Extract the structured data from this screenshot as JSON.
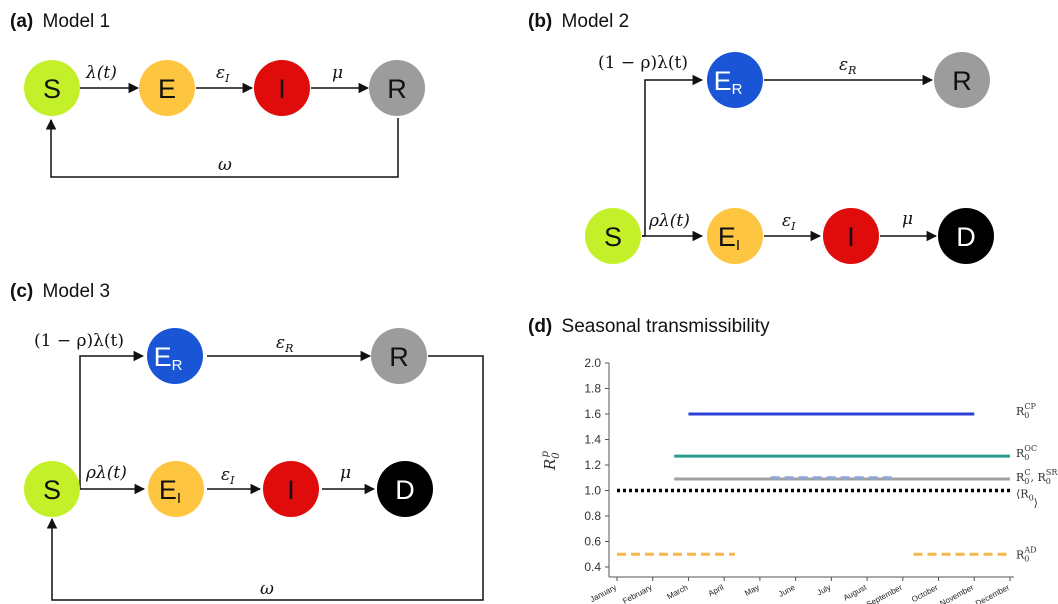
{
  "panels": {
    "a": {
      "tag": "(a)",
      "title": "Model 1"
    },
    "b": {
      "tag": "(b)",
      "title": "Model 2"
    },
    "c": {
      "tag": "(c)",
      "title": "Model 3"
    },
    "d": {
      "tag": "(d)",
      "title": "Seasonal transmissibility"
    }
  },
  "nodes": {
    "S": "S",
    "E": "E",
    "I": "I",
    "R": "R",
    "D": "D",
    "E_R_main": "E",
    "E_R_sub": "R",
    "E_I_main": "E",
    "E_I_sub": "I"
  },
  "colors": {
    "S": "#c4f02a",
    "E": "#fdc540",
    "I": "#e00b0b",
    "R": "#9c9c9c",
    "E_R": "#1a55d6",
    "D": "#000000"
  },
  "rates": {
    "lambda": "λ(t)",
    "epsilon_I": "ε",
    "epsilon_I_sub": "I",
    "epsilon_R": "ε",
    "epsilon_R_sub": "R",
    "mu": "μ",
    "omega": "ω",
    "one_minus_rho_lambda": "(1 − ρ)λ(t)",
    "rho_lambda": "ρλ(t)"
  },
  "chart_data": {
    "type": "line",
    "title": "Seasonal transmissibility",
    "ylabel": "R0p",
    "ylim": [
      0.4,
      2.0
    ],
    "yticks": [
      "0.4",
      "0.6",
      "0.8",
      "1.0",
      "1.2",
      "1.4",
      "1.6",
      "1.8",
      "2.0"
    ],
    "categories": [
      "January",
      "February",
      "March",
      "April",
      "May",
      "June",
      "July",
      "August",
      "September",
      "October",
      "November",
      "December"
    ],
    "series": [
      {
        "name": "R0^CP",
        "label_main": "R",
        "label_sub": "0",
        "label_sup": "CP",
        "color": "#2b3fd6",
        "style": "solid",
        "segments": [
          {
            "from": 2,
            "to": 10,
            "value": 1.6
          }
        ]
      },
      {
        "name": "R0^OC",
        "label_main": "R",
        "label_sub": "0",
        "label_sup": "OC",
        "color": "#2a9d8f",
        "style": "solid",
        "segments": [
          {
            "from": 1.6,
            "to": 11,
            "value": 1.27
          }
        ]
      },
      {
        "name": "R0^C, R0^SR",
        "label_main": "R",
        "label_sub": "0",
        "label_sup": "C",
        "label_tail": ", R",
        "label_tail_sub": "0",
        "label_tail_sup": "SR",
        "color": "#a0a0a0",
        "style": "solid",
        "segments": [
          {
            "from": 1.6,
            "to": 11,
            "value": 1.09
          }
        ]
      },
      {
        "name": "R0^SR dashed",
        "color": "#8ea6d8",
        "style": "dashed",
        "segments": [
          {
            "from": 4.3,
            "to": 7.8,
            "value": 1.1
          }
        ]
      },
      {
        "name": "<R0>",
        "label_main": "⟨R",
        "label_sub": "0",
        "label_sup": "",
        "label_tail": "⟩",
        "color": "#000000",
        "style": "dotted",
        "segments": [
          {
            "from": 0,
            "to": 11,
            "value": 1.0
          }
        ]
      },
      {
        "name": "R0^AD",
        "label_main": "R",
        "label_sub": "0",
        "label_sup": "AD",
        "color": "#f5b74a",
        "style": "dashed",
        "segments": [
          {
            "from": 0,
            "to": 3.3,
            "value": 0.5
          },
          {
            "from": 8.3,
            "to": 11,
            "value": 0.5
          }
        ]
      }
    ]
  }
}
